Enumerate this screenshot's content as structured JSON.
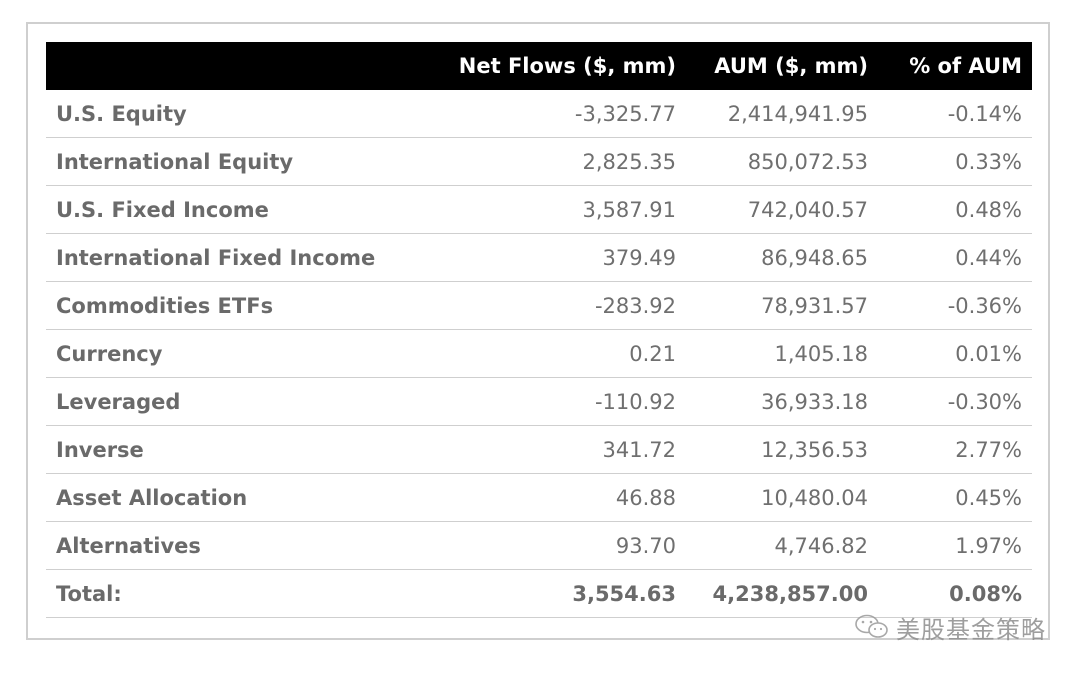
{
  "table": {
    "columns": [
      "",
      "Net Flows ($, mm)",
      "AUM ($, mm)",
      "% of AUM"
    ],
    "rows": [
      {
        "category": "U.S. Equity",
        "net_flows": "-3,325.77",
        "aum": "2,414,941.95",
        "pct": "-0.14%"
      },
      {
        "category": "International Equity",
        "net_flows": "2,825.35",
        "aum": "850,072.53",
        "pct": "0.33%"
      },
      {
        "category": "U.S. Fixed Income",
        "net_flows": "3,587.91",
        "aum": "742,040.57",
        "pct": "0.48%"
      },
      {
        "category": "International Fixed Income",
        "net_flows": "379.49",
        "aum": "86,948.65",
        "pct": "0.44%"
      },
      {
        "category": "Commodities ETFs",
        "net_flows": "-283.92",
        "aum": "78,931.57",
        "pct": "-0.36%"
      },
      {
        "category": "Currency",
        "net_flows": "0.21",
        "aum": "1,405.18",
        "pct": "0.01%"
      },
      {
        "category": "Leveraged",
        "net_flows": "-110.92",
        "aum": "36,933.18",
        "pct": "-0.30%"
      },
      {
        "category": "Inverse",
        "net_flows": "341.72",
        "aum": "12,356.53",
        "pct": "2.77%"
      },
      {
        "category": "Asset Allocation",
        "net_flows": "46.88",
        "aum": "10,480.04",
        "pct": "0.45%"
      },
      {
        "category": "Alternatives",
        "net_flows": "93.70",
        "aum": "4,746.82",
        "pct": "1.97%"
      }
    ],
    "total": {
      "category": "Total:",
      "net_flows": "3,554.63",
      "aum": "4,238,857.00",
      "pct": "0.08%"
    }
  },
  "chart_data": {
    "type": "table",
    "columns": [
      "Net Flows ($, mm)",
      "AUM ($, mm)",
      "% of AUM"
    ],
    "categories": [
      "U.S. Equity",
      "International Equity",
      "U.S. Fixed Income",
      "International Fixed Income",
      "Commodities ETFs",
      "Currency",
      "Leveraged",
      "Inverse",
      "Asset Allocation",
      "Alternatives"
    ],
    "series": [
      {
        "name": "Net Flows ($, mm)",
        "values": [
          -3325.77,
          2825.35,
          3587.91,
          379.49,
          -283.92,
          0.21,
          -110.92,
          341.72,
          46.88,
          93.7
        ]
      },
      {
        "name": "AUM ($, mm)",
        "values": [
          2414941.95,
          850072.53,
          742040.57,
          86948.65,
          78931.57,
          1405.18,
          36933.18,
          12356.53,
          10480.04,
          4746.82
        ]
      },
      {
        "name": "% of AUM",
        "values": [
          -0.14,
          0.33,
          0.48,
          0.44,
          -0.36,
          0.01,
          -0.3,
          2.77,
          0.45,
          1.97
        ]
      }
    ],
    "total": {
      "net_flows": 3554.63,
      "aum": 4238857.0,
      "pct": 0.08
    }
  },
  "watermark": {
    "text": "美股基金策略",
    "icon": "wechat-icon"
  }
}
